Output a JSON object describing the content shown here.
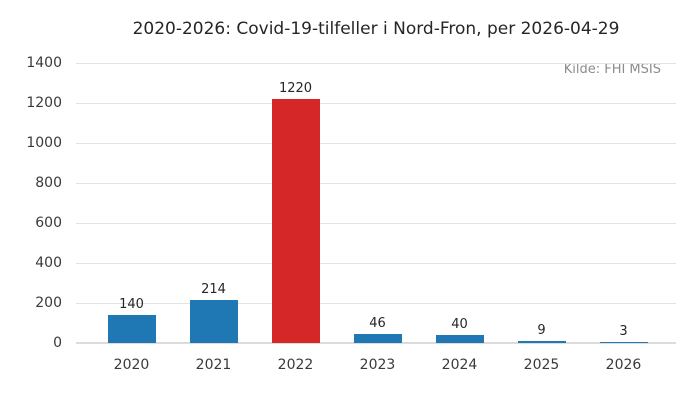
{
  "chart_data": {
    "type": "bar",
    "title": "2020-2026: Covid-19-tilfeller i Nord-Fron, per 2026-04-29",
    "annotation": "Kilde: FHI MSIS",
    "categories": [
      "2020",
      "2021",
      "2022",
      "2023",
      "2024",
      "2025",
      "2026"
    ],
    "values": [
      140,
      214,
      1220,
      46,
      40,
      9,
      3
    ],
    "value_labels": [
      "140",
      "214",
      "1220",
      "46",
      "40",
      "9",
      "3"
    ],
    "bar_colors": [
      "#1f77b4",
      "#1f77b4",
      "#d62728",
      "#1f77b4",
      "#1f77b4",
      "#1f77b4",
      "#1f77b4"
    ],
    "xlabel": "",
    "ylabel": "",
    "ylim": [
      0,
      1400
    ],
    "yticks": [
      0,
      200,
      400,
      600,
      800,
      1000,
      1200,
      1400
    ],
    "grid": true,
    "legend": null,
    "colors": {
      "bar_default": "#1f77b4",
      "bar_highlight": "#d62728",
      "gridline": "#e3e3e3",
      "tick_text": "#3a3a3a",
      "title_text": "#262626",
      "annotation_text": "#8c8c8c",
      "background": "#ffffff"
    }
  }
}
